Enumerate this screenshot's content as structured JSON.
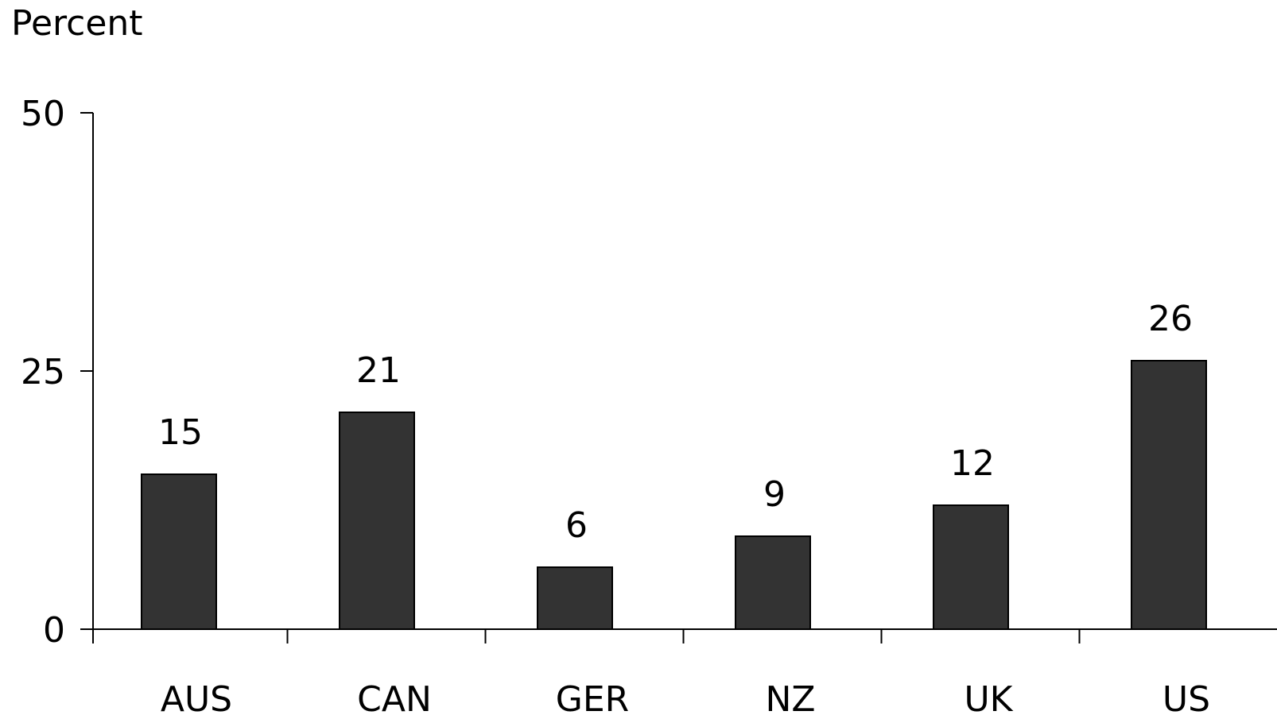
{
  "chart_data": {
    "type": "bar",
    "ylabel": "Percent",
    "xlabel": "",
    "title": "",
    "categories": [
      "AUS",
      "CAN",
      "GER",
      "NZ",
      "UK",
      "US"
    ],
    "values": [
      15,
      21,
      6,
      9,
      12,
      26
    ],
    "data_labels": [
      "15",
      "21",
      "6",
      "9",
      "12",
      "26"
    ],
    "ylim": [
      0,
      50
    ],
    "yticks": [
      0,
      25,
      50
    ],
    "ytick_labels": [
      "0",
      "25",
      "50"
    ],
    "bar_color": "#333333",
    "grid": false,
    "legend": "none"
  }
}
